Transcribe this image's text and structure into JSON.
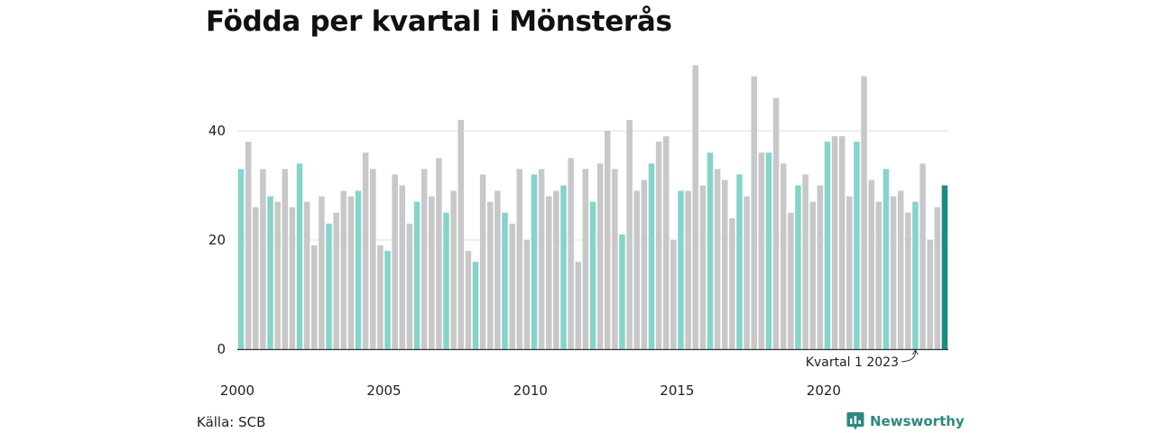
{
  "title": "Födda per kvartal i Mönsterås",
  "source": "Källa: SCB",
  "brand": {
    "name": "Newsworthy",
    "icon": "newsworthy-logo-icon"
  },
  "colors": {
    "q1": "#86d3cc",
    "other": "#c8c8c8",
    "latest": "#1a8c82",
    "grid": "#dddddd",
    "axis": "#333333"
  },
  "chart_data": {
    "type": "bar",
    "title": "Födda per kvartal i Mönsterås",
    "ylim": [
      0,
      53
    ],
    "y_ticks": [
      0,
      20,
      40
    ],
    "x_ticks": [
      "2000",
      "2005",
      "2010",
      "2015",
      "2020"
    ],
    "grid": true,
    "start": "2000 Q1",
    "annotation": "Kvartal 1 2023",
    "values": [
      33,
      38,
      26,
      33,
      28,
      27,
      33,
      26,
      34,
      27,
      19,
      28,
      23,
      25,
      29,
      28,
      29,
      36,
      33,
      19,
      18,
      32,
      30,
      23,
      27,
      33,
      28,
      35,
      25,
      29,
      42,
      18,
      16,
      32,
      27,
      29,
      25,
      23,
      33,
      20,
      32,
      33,
      28,
      29,
      30,
      35,
      16,
      33,
      27,
      34,
      40,
      33,
      21,
      42,
      29,
      31,
      34,
      38,
      39,
      20,
      29,
      29,
      52,
      30,
      36,
      33,
      31,
      24,
      32,
      28,
      50,
      36,
      36,
      46,
      34,
      25,
      30,
      32,
      27,
      30,
      38,
      39,
      39,
      28,
      38,
      50,
      31,
      27,
      33,
      28,
      29,
      25,
      27,
      34,
      20,
      26,
      30
    ]
  }
}
